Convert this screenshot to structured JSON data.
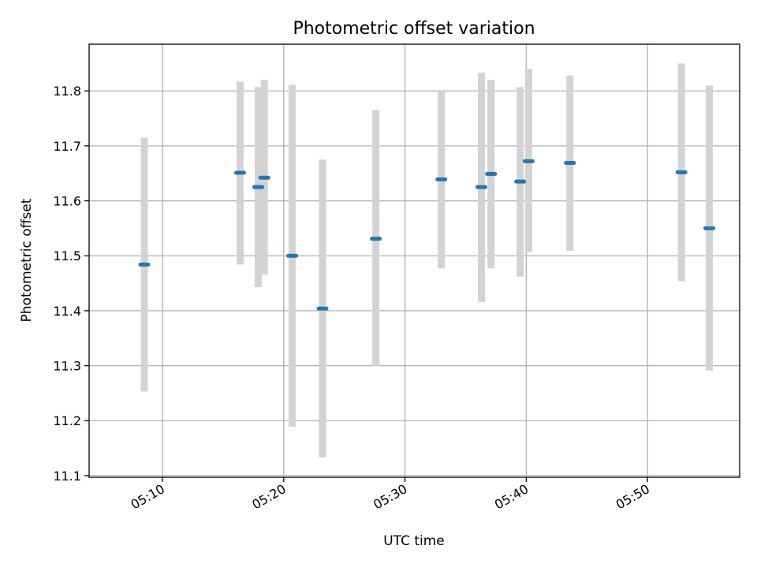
{
  "chart_data": {
    "type": "scatter",
    "title": "Photometric offset variation",
    "xlabel": "UTC time",
    "ylabel": "Photometric offset",
    "x_unit": "minutes past 05:00 UTC",
    "xlim": [
      3.95,
      57.6
    ],
    "ylim": [
      11.097,
      11.885
    ],
    "grid": true,
    "legend": "none",
    "xticks": [
      {
        "value": 10,
        "label": "05:10"
      },
      {
        "value": 20,
        "label": "05:20"
      },
      {
        "value": 30,
        "label": "05:30"
      },
      {
        "value": 40,
        "label": "05:40"
      },
      {
        "value": 50,
        "label": "05:50"
      }
    ],
    "yticks": [
      {
        "value": 11.1,
        "label": "11.1"
      },
      {
        "value": 11.2,
        "label": "11.2"
      },
      {
        "value": 11.3,
        "label": "11.3"
      },
      {
        "value": 11.4,
        "label": "11.4"
      },
      {
        "value": 11.5,
        "label": "11.5"
      },
      {
        "value": 11.6,
        "label": "11.6"
      },
      {
        "value": 11.7,
        "label": "11.7"
      },
      {
        "value": 11.8,
        "label": "11.8"
      }
    ],
    "series": [
      {
        "points": [
          {
            "x": 8.5,
            "y": 11.484,
            "ylow": 11.253,
            "yhigh": 11.715
          },
          {
            "x": 16.4,
            "y": 11.651,
            "ylow": 11.484,
            "yhigh": 11.817
          },
          {
            "x": 17.9,
            "y": 11.625,
            "ylow": 11.443,
            "yhigh": 11.807
          },
          {
            "x": 18.4,
            "y": 11.642,
            "ylow": 11.466,
            "yhigh": 11.82
          },
          {
            "x": 20.7,
            "y": 11.5,
            "ylow": 11.189,
            "yhigh": 11.811
          },
          {
            "x": 23.2,
            "y": 11.404,
            "ylow": 11.133,
            "yhigh": 11.675
          },
          {
            "x": 27.6,
            "y": 11.531,
            "ylow": 11.299,
            "yhigh": 11.765
          },
          {
            "x": 33.0,
            "y": 11.639,
            "ylow": 11.477,
            "yhigh": 11.8
          },
          {
            "x": 36.3,
            "y": 11.625,
            "ylow": 11.416,
            "yhigh": 11.833
          },
          {
            "x": 37.1,
            "y": 11.649,
            "ylow": 11.477,
            "yhigh": 11.82
          },
          {
            "x": 39.5,
            "y": 11.635,
            "ylow": 11.462,
            "yhigh": 11.807
          },
          {
            "x": 40.2,
            "y": 11.672,
            "ylow": 11.507,
            "yhigh": 11.84
          },
          {
            "x": 43.6,
            "y": 11.669,
            "ylow": 11.509,
            "yhigh": 11.828
          },
          {
            "x": 52.8,
            "y": 11.652,
            "ylow": 11.454,
            "yhigh": 11.85
          },
          {
            "x": 55.1,
            "y": 11.55,
            "ylow": 11.291,
            "yhigh": 11.81
          }
        ]
      }
    ],
    "colors": {
      "point": "#1f77b4",
      "errorbar": "#d3d3d3"
    }
  }
}
